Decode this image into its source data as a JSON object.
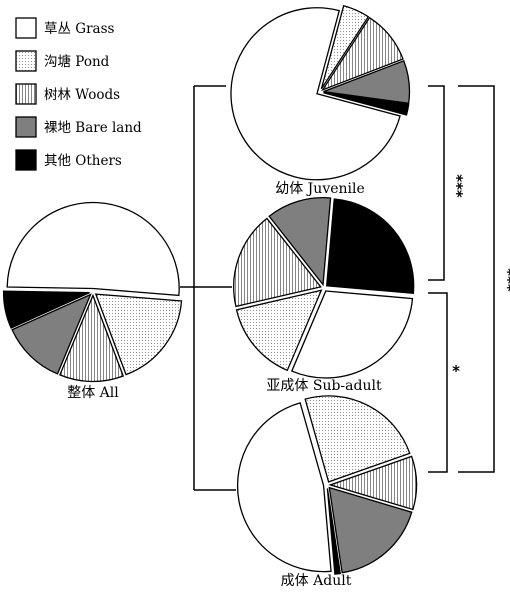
{
  "legend": [
    {
      "key": "grass",
      "label": "草丛 Grass",
      "pattern": "white"
    },
    {
      "key": "pond",
      "label": "沟塘 Pond",
      "pattern": "dots"
    },
    {
      "key": "woods",
      "label": "树林 Woods",
      "pattern": "vlines"
    },
    {
      "key": "bare",
      "label": "裸地 Bare land",
      "pattern": "gray"
    },
    {
      "key": "others",
      "label": "其他 Others",
      "pattern": "black"
    }
  ],
  "significance": {
    "juvenile_vs_subadult": "***",
    "subadult_vs_adult": "*",
    "juvenile_vs_adult": "***"
  },
  "colors": {
    "gray": "#7f7f7f",
    "black": "#000000",
    "stroke": "#000000"
  },
  "chart_data": [
    {
      "type": "pie",
      "title": "整体 All",
      "categories": [
        "草丛 Grass",
        "沟塘 Pond",
        "树林 Woods",
        "裸地 Bare land",
        "其他 Others"
      ],
      "values": [
        51,
        18,
        12,
        12,
        7
      ]
    },
    {
      "type": "pie",
      "title": "幼体 Juvenile",
      "categories": [
        "草丛 Grass",
        "沟塘 Pond",
        "树林 Woods",
        "裸地 Bare land",
        "其他 Others"
      ],
      "values": [
        75,
        5,
        10,
        8,
        2
      ]
    },
    {
      "type": "pie",
      "title": "亚成体 Sub-adult",
      "categories": [
        "草丛 Grass",
        "沟塘 Pond",
        "树林 Woods",
        "裸地 Bare land",
        "其他 Others"
      ],
      "values": [
        30,
        15,
        18,
        12,
        25
      ]
    },
    {
      "type": "pie",
      "title": "成体 Adult",
      "categories": [
        "草丛 Grass",
        "沟塘 Pond",
        "树林 Woods",
        "裸地 Bare land",
        "其他 Others"
      ],
      "values": [
        47,
        24,
        10,
        18,
        1
      ]
    }
  ]
}
